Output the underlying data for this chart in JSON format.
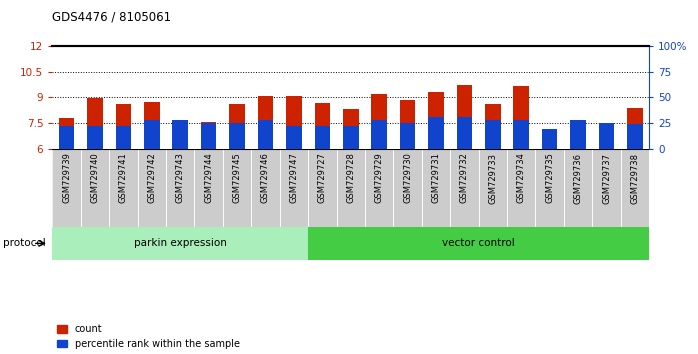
{
  "title": "GDS4476 / 8105061",
  "samples": [
    "GSM729739",
    "GSM729740",
    "GSM729741",
    "GSM729742",
    "GSM729743",
    "GSM729744",
    "GSM729745",
    "GSM729746",
    "GSM729747",
    "GSM729727",
    "GSM729728",
    "GSM729729",
    "GSM729730",
    "GSM729731",
    "GSM729732",
    "GSM729733",
    "GSM729734",
    "GSM729735",
    "GSM729736",
    "GSM729737",
    "GSM729738"
  ],
  "count_values": [
    7.8,
    8.95,
    8.6,
    8.75,
    7.5,
    7.55,
    8.6,
    9.1,
    9.1,
    8.65,
    8.3,
    9.2,
    8.85,
    9.3,
    9.7,
    8.6,
    9.65,
    6.25,
    6.3,
    6.7,
    8.4
  ],
  "percentile_pct": [
    22,
    22,
    22,
    28,
    28,
    25,
    25,
    28,
    22,
    22,
    22,
    28,
    25,
    31,
    31,
    28,
    28,
    19,
    28,
    25,
    24
  ],
  "ylim_left": [
    6,
    12
  ],
  "ylim_right": [
    0,
    100
  ],
  "yticks_left": [
    6,
    7.5,
    9,
    10.5,
    12
  ],
  "yticks_right": [
    0,
    25,
    50,
    75,
    100
  ],
  "bar_color_red": "#CC2200",
  "bar_color_blue": "#1144CC",
  "parkin_count": 9,
  "vector_count": 12,
  "parkin_label": "parkin expression",
  "vector_label": "vector control",
  "protocol_label": "protocol",
  "legend_count": "count",
  "legend_percentile": "percentile rank within the sample",
  "parkin_color": "#AAEEBB",
  "vector_color": "#44CC44",
  "bar_width": 0.55,
  "base_value": 6.0
}
